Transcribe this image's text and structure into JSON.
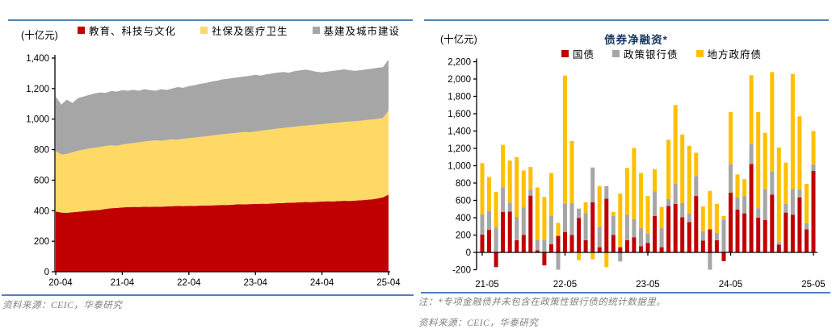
{
  "colors": {
    "accent_rule_blue": "#4F81BD",
    "title_navy": "#17375E",
    "red": "#C00000",
    "area_yellow": "#FFD966",
    "bar_yellow": "#FFC000",
    "gray": "#A6A6A6",
    "note_gray": "#808080",
    "axis_black": "#000000"
  },
  "panels": {
    "left": {
      "unit_label": "(十亿元)",
      "source": "资料来源：CEIC，华泰研究"
    },
    "right": {
      "unit_label": "(十亿元)",
      "title": "债券净融资*",
      "note": "注：*专项金融债并未包含在政策性银行债的统计数据里。",
      "source": "资料来源：CEIC，华泰研究"
    }
  },
  "chart_data": [
    {
      "type": "area",
      "stacked": true,
      "title": "",
      "unit_label": "(十亿元)",
      "ylim": [
        0,
        1400
      ],
      "y_tick_step": 200,
      "grid": false,
      "legend_position": "top",
      "x_tick_labels": [
        "20-04",
        "21-04",
        "22-04",
        "23-04",
        "24-04",
        "25-04"
      ],
      "x_months": [
        "20-04",
        "20-05",
        "20-06",
        "20-07",
        "20-08",
        "20-09",
        "20-10",
        "20-11",
        "20-12",
        "21-01",
        "21-02",
        "21-03",
        "21-04",
        "21-05",
        "21-06",
        "21-07",
        "21-08",
        "21-09",
        "21-10",
        "21-11",
        "21-12",
        "22-01",
        "22-02",
        "22-03",
        "22-04",
        "22-05",
        "22-06",
        "22-07",
        "22-08",
        "22-09",
        "22-10",
        "22-11",
        "22-12",
        "23-01",
        "23-02",
        "23-03",
        "23-04",
        "23-05",
        "23-06",
        "23-07",
        "23-08",
        "23-09",
        "23-10",
        "23-11",
        "23-12",
        "24-01",
        "24-02",
        "24-03",
        "24-04",
        "24-05",
        "24-06",
        "24-07",
        "24-08",
        "24-09",
        "24-10",
        "24-11",
        "24-12",
        "25-01",
        "25-02",
        "25-03",
        "25-04"
      ],
      "series": [
        {
          "name": "教育、科技与文化",
          "color": "#C00000",
          "values": [
            395,
            388,
            386,
            390,
            393,
            396,
            400,
            403,
            406,
            412,
            416,
            418,
            421,
            423,
            425,
            424,
            426,
            425,
            427,
            426,
            428,
            429,
            431,
            430,
            432,
            431,
            433,
            435,
            434,
            436,
            438,
            437,
            440,
            442,
            441,
            443,
            444,
            446,
            445,
            447,
            449,
            450,
            452,
            453,
            455,
            457,
            456,
            458,
            460,
            462,
            461,
            463,
            465,
            464,
            466,
            468,
            471,
            474,
            480,
            488,
            505
          ]
        },
        {
          "name": "社保及医疗卫生",
          "color": "#FFD966",
          "values": [
            395,
            380,
            386,
            392,
            400,
            404,
            408,
            409,
            412,
            412,
            412,
            408,
            412,
            416,
            418,
            424,
            427,
            432,
            434,
            432,
            436,
            439,
            435,
            441,
            444,
            448,
            451,
            452,
            457,
            460,
            463,
            468,
            468,
            470,
            475,
            471,
            475,
            478,
            483,
            486,
            489,
            492,
            494,
            497,
            499,
            501,
            505,
            506,
            507,
            509,
            513,
            515,
            516,
            520,
            521,
            522,
            523,
            523,
            521,
            520,
            550
          ]
        },
        {
          "name": "基建及城市建设",
          "color": "#A6A6A6",
          "values": [
            358,
            327,
            356,
            323,
            345,
            348,
            350,
            356,
            357,
            348,
            356,
            354,
            357,
            347,
            349,
            338,
            343,
            333,
            325,
            338,
            327,
            333,
            344,
            334,
            340,
            343,
            347,
            349,
            354,
            355,
            359,
            359,
            362,
            362,
            364,
            370,
            371,
            361,
            366,
            366,
            367,
            367,
            358,
            364,
            365,
            366,
            357,
            346,
            339,
            340,
            342,
            343,
            345,
            336,
            329,
            331,
            332,
            334,
            335,
            333,
            335
          ]
        }
      ]
    },
    {
      "type": "bar",
      "stacked": true,
      "title": "债券净融资*",
      "unit_label": "(十亿元)",
      "ylim": [
        -200,
        2200
      ],
      "y_tick_step": 200,
      "grid": false,
      "legend_position": "top-inside",
      "x_tick_labels": [
        "21-05",
        "22-05",
        "23-05",
        "24-05",
        "25-05"
      ],
      "x_months": [
        "21-05",
        "21-06",
        "21-07",
        "21-08",
        "21-09",
        "21-10",
        "21-11",
        "21-12",
        "22-01",
        "22-02",
        "22-03",
        "22-04",
        "22-05",
        "22-06",
        "22-07",
        "22-08",
        "22-09",
        "22-10",
        "22-11",
        "22-12",
        "23-01",
        "23-02",
        "23-03",
        "23-04",
        "23-05",
        "23-06",
        "23-07",
        "23-08",
        "23-09",
        "23-10",
        "23-11",
        "23-12",
        "24-01",
        "24-02",
        "24-03",
        "24-04",
        "24-05",
        "24-06",
        "24-07",
        "24-08",
        "24-09",
        "24-10",
        "24-11",
        "24-12",
        "25-01",
        "25-02",
        "25-03",
        "25-04",
        "25-05"
      ],
      "series": [
        {
          "name": "国债",
          "color": "#C00000",
          "values": [
            205,
            260,
            -170,
            465,
            470,
            140,
            200,
            655,
            25,
            -150,
            95,
            190,
            235,
            200,
            395,
            140,
            580,
            60,
            620,
            200,
            60,
            140,
            175,
            70,
            110,
            420,
            60,
            535,
            560,
            405,
            350,
            650,
            135,
            265,
            140,
            -100,
            690,
            495,
            450,
            1020,
            400,
            375,
            665,
            90,
            460,
            435,
            635,
            265,
            940
          ]
        },
        {
          "name": "政策银行债",
          "color": "#A6A6A6",
          "values": [
            235,
            220,
            290,
            285,
            105,
            270,
            320,
            70,
            115,
            145,
            325,
            -230,
            330,
            370,
            110,
            315,
            400,
            235,
            145,
            220,
            -105,
            295,
            210,
            210,
            110,
            285,
            220,
            80,
            230,
            165,
            100,
            230,
            110,
            -215,
            85,
            380,
            330,
            140,
            200,
            230,
            110,
            355,
            265,
            30,
            100,
            295,
            90,
            70,
            75
          ]
        },
        {
          "name": "地方政府债",
          "color": "#FFC000",
          "values": [
            590,
            390,
            410,
            490,
            485,
            690,
            425,
            260,
            610,
            495,
            495,
            150,
            1475,
            715,
            -90,
            125,
            -80,
            470,
            -170,
            45,
            620,
            540,
            820,
            635,
            430,
            255,
            245,
            685,
            910,
            790,
            780,
            270,
            285,
            445,
            335,
            40,
            600,
            265,
            195,
            795,
            1110,
            650,
            1150,
            1090,
            475,
            1330,
            845,
            455,
            385
          ]
        }
      ]
    }
  ]
}
